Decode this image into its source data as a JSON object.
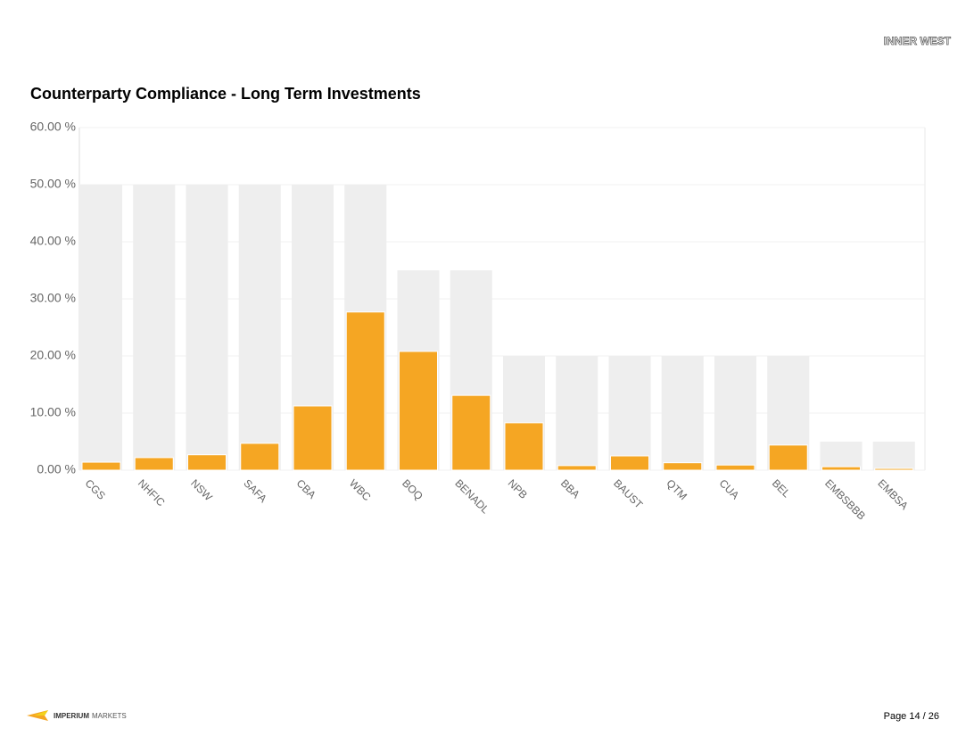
{
  "header": {
    "logo": "INNER WEST"
  },
  "chart_data": {
    "type": "bar",
    "title": "Counterparty Compliance - Long Term Investments",
    "categories": [
      "CGS",
      "NHFIC",
      "NSW",
      "SAFA",
      "CBA",
      "WBC",
      "BOQ",
      "BENADL",
      "NPB",
      "BBA",
      "BAUST",
      "QTM",
      "CUA",
      "BEL",
      "EMBSBBB",
      "EMBSA"
    ],
    "series": [
      {
        "color": "#eeeeee",
        "values": [
          50,
          50,
          50,
          50,
          50,
          50,
          35,
          35,
          20,
          20,
          20,
          20,
          20,
          20,
          5,
          5
        ]
      },
      {
        "color": "#f5a623",
        "values": [
          1.4,
          2.2,
          2.7,
          4.7,
          11.25,
          27.7,
          20.8,
          13.1,
          8.3,
          0.8,
          2.5,
          1.3,
          0.9,
          4.4,
          0.6,
          0.3
        ]
      }
    ],
    "ylim": [
      0,
      60
    ],
    "yticks": [
      {
        "value": 0,
        "label": "0.00 %"
      },
      {
        "value": 10,
        "label": "10.00 %"
      },
      {
        "value": 20,
        "label": "20.00 %"
      },
      {
        "value": 30,
        "label": "30.00 %"
      },
      {
        "value": 40,
        "label": "40.00 %"
      },
      {
        "value": 50,
        "label": "50.00 %"
      },
      {
        "value": 60,
        "label": "60.00 %"
      }
    ],
    "grid": true
  },
  "footer": {
    "brand_bold": "IMPERIUM",
    "brand_light": "MARKETS",
    "page": "Page 14 / 26"
  }
}
